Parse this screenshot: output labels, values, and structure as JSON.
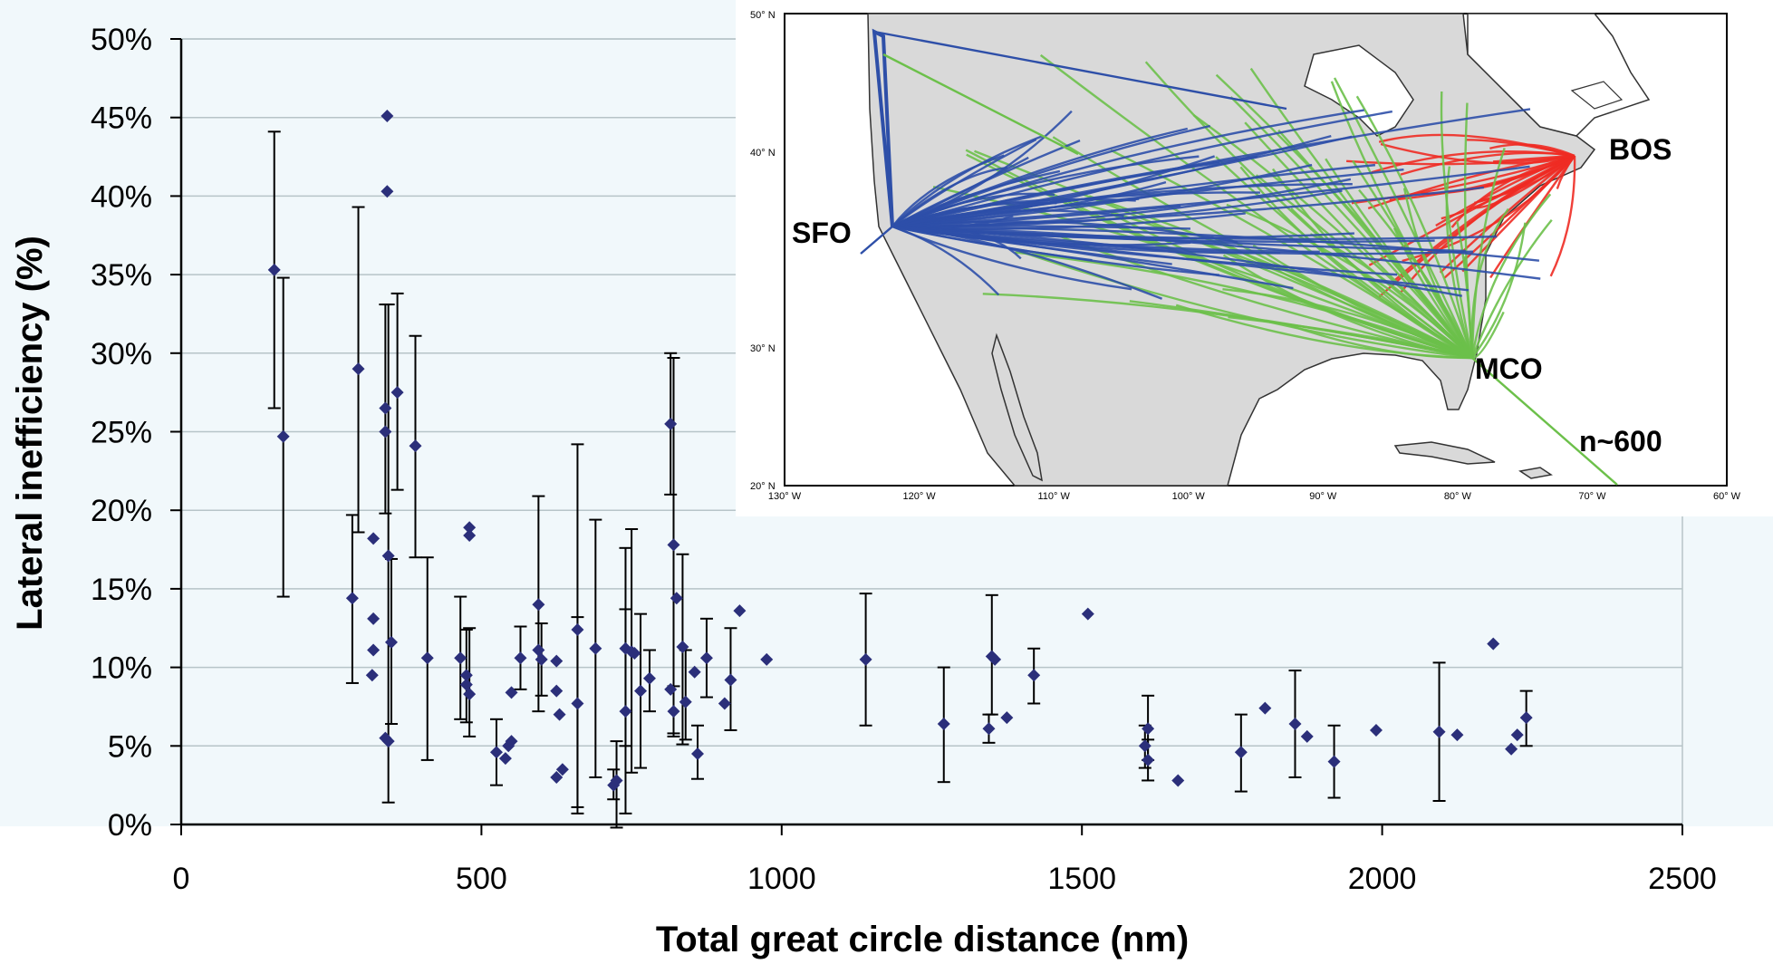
{
  "chart_data": {
    "type": "scatter",
    "xlabel": "Total great circle distance (nm)",
    "ylabel": "Lateral inefficiency (%)",
    "xlim": [
      0,
      2500
    ],
    "ylim": [
      0,
      50
    ],
    "x_ticks": [
      "0",
      "500",
      "1000",
      "1500",
      "2000",
      "2500"
    ],
    "y_ticks": [
      "0%",
      "5%",
      "10%",
      "15%",
      "20%",
      "25%",
      "30%",
      "35%",
      "40%",
      "45%",
      "50%"
    ],
    "grid": "horizontal",
    "marker_color": "#2b2f7a",
    "points": [
      {
        "x": 155,
        "y": 35.3,
        "lo": 26.5,
        "hi": 44.1
      },
      {
        "x": 170,
        "y": 24.7,
        "lo": 14.5,
        "hi": 34.8
      },
      {
        "x": 285,
        "y": 14.4,
        "lo": 9.0,
        "hi": 19.7
      },
      {
        "x": 295,
        "y": 29.0,
        "lo": 18.6,
        "hi": 39.3
      },
      {
        "x": 320,
        "y": 18.2
      },
      {
        "x": 320,
        "y": 13.1
      },
      {
        "x": 320,
        "y": 11.1
      },
      {
        "x": 318,
        "y": 9.5
      },
      {
        "x": 343,
        "y": 45.1
      },
      {
        "x": 343,
        "y": 40.3
      },
      {
        "x": 340,
        "y": 26.5,
        "lo": 19.8,
        "hi": 33.1
      },
      {
        "x": 340,
        "y": 25.0
      },
      {
        "x": 345,
        "y": 17.1,
        "lo": 1.4,
        "hi": 33.1
      },
      {
        "x": 345,
        "y": 5.3
      },
      {
        "x": 340,
        "y": 5.5
      },
      {
        "x": 350,
        "y": 11.6,
        "lo": 6.4,
        "hi": 16.9
      },
      {
        "x": 360,
        "y": 27.5,
        "lo": 21.3,
        "hi": 33.8
      },
      {
        "x": 390,
        "y": 24.1,
        "lo": 17.0,
        "hi": 31.1
      },
      {
        "x": 410,
        "y": 10.6,
        "lo": 4.1,
        "hi": 17.0
      },
      {
        "x": 465,
        "y": 10.6,
        "lo": 6.7,
        "hi": 14.5
      },
      {
        "x": 480,
        "y": 18.9
      },
      {
        "x": 480,
        "y": 18.4
      },
      {
        "x": 475,
        "y": 9.5,
        "lo": 6.5,
        "hi": 12.4
      },
      {
        "x": 475,
        "y": 8.9
      },
      {
        "x": 480,
        "y": 8.3,
        "lo": 5.6,
        "hi": 12.5
      },
      {
        "x": 525,
        "y": 4.6,
        "lo": 2.5,
        "hi": 6.7
      },
      {
        "x": 540,
        "y": 4.2
      },
      {
        "x": 545,
        "y": 5.0
      },
      {
        "x": 550,
        "y": 5.3
      },
      {
        "x": 550,
        "y": 8.4
      },
      {
        "x": 565,
        "y": 10.6,
        "lo": 8.6,
        "hi": 12.6
      },
      {
        "x": 595,
        "y": 14.0,
        "lo": 7.2,
        "hi": 20.9
      },
      {
        "x": 595,
        "y": 11.1
      },
      {
        "x": 600,
        "y": 10.5,
        "lo": 8.2,
        "hi": 12.8
      },
      {
        "x": 625,
        "y": 10.4
      },
      {
        "x": 625,
        "y": 8.5
      },
      {
        "x": 630,
        "y": 7.0
      },
      {
        "x": 625,
        "y": 3.0
      },
      {
        "x": 635,
        "y": 3.5
      },
      {
        "x": 660,
        "y": 12.4,
        "lo": 0.7,
        "hi": 24.2
      },
      {
        "x": 660,
        "y": 7.7,
        "lo": 1.1,
        "hi": 13.2
      },
      {
        "x": 690,
        "y": 11.2,
        "lo": 3.0,
        "hi": 19.4
      },
      {
        "x": 720,
        "y": 2.5,
        "lo": 1.6,
        "hi": 3.5
      },
      {
        "x": 725,
        "y": 2.8,
        "lo": -0.2,
        "hi": 5.3
      },
      {
        "x": 740,
        "y": 11.2,
        "lo": 5.0,
        "hi": 17.6
      },
      {
        "x": 740,
        "y": 7.2,
        "lo": 0.7,
        "hi": 13.7
      },
      {
        "x": 750,
        "y": 11.0,
        "lo": 3.3,
        "hi": 18.8
      },
      {
        "x": 755,
        "y": 10.9
      },
      {
        "x": 765,
        "y": 8.5,
        "lo": 3.6,
        "hi": 13.4
      },
      {
        "x": 780,
        "y": 9.3,
        "lo": 7.2,
        "hi": 11.1
      },
      {
        "x": 815,
        "y": 25.5,
        "lo": 21.0,
        "hi": 30.0
      },
      {
        "x": 820,
        "y": 17.8,
        "lo": 5.8,
        "hi": 29.7
      },
      {
        "x": 825,
        "y": 14.4
      },
      {
        "x": 815,
        "y": 8.6
      },
      {
        "x": 820,
        "y": 7.2,
        "lo": 5.6,
        "hi": 8.8
      },
      {
        "x": 835,
        "y": 11.3,
        "lo": 5.1,
        "hi": 17.2
      },
      {
        "x": 840,
        "y": 7.8,
        "lo": 5.4,
        "hi": 11.1
      },
      {
        "x": 855,
        "y": 9.7
      },
      {
        "x": 860,
        "y": 4.5,
        "lo": 2.9,
        "hi": 6.3
      },
      {
        "x": 875,
        "y": 10.6,
        "lo": 8.1,
        "hi": 13.1
      },
      {
        "x": 905,
        "y": 7.7
      },
      {
        "x": 915,
        "y": 9.2,
        "lo": 6.0,
        "hi": 12.5
      },
      {
        "x": 930,
        "y": 13.6
      },
      {
        "x": 975,
        "y": 10.5
      },
      {
        "x": 1140,
        "y": 10.5,
        "lo": 6.3,
        "hi": 14.7
      },
      {
        "x": 1270,
        "y": 6.4,
        "lo": 2.7,
        "hi": 10.0
      },
      {
        "x": 1345,
        "y": 6.1,
        "lo": 5.2,
        "hi": 7.0
      },
      {
        "x": 1350,
        "y": 10.7,
        "lo": 7.0,
        "hi": 14.6
      },
      {
        "x": 1355,
        "y": 10.5
      },
      {
        "x": 1375,
        "y": 6.8
      },
      {
        "x": 1420,
        "y": 9.5,
        "lo": 7.7,
        "hi": 11.2
      },
      {
        "x": 1510,
        "y": 13.4
      },
      {
        "x": 1605,
        "y": 5.0,
        "lo": 3.6,
        "hi": 6.3
      },
      {
        "x": 1610,
        "y": 6.1,
        "lo": 4.1,
        "hi": 8.2
      },
      {
        "x": 1610,
        "y": 4.1,
        "lo": 2.8,
        "hi": 5.4
      },
      {
        "x": 1660,
        "y": 2.8
      },
      {
        "x": 1765,
        "y": 4.6,
        "lo": 2.1,
        "hi": 7.0
      },
      {
        "x": 1805,
        "y": 7.4
      },
      {
        "x": 1855,
        "y": 6.4,
        "lo": 3.0,
        "hi": 9.8
      },
      {
        "x": 1875,
        "y": 5.6
      },
      {
        "x": 1920,
        "y": 4.0,
        "lo": 1.7,
        "hi": 6.3
      },
      {
        "x": 1990,
        "y": 6.0
      },
      {
        "x": 2095,
        "y": 5.9,
        "lo": 1.5,
        "hi": 10.3
      },
      {
        "x": 2125,
        "y": 5.7
      },
      {
        "x": 2185,
        "y": 11.5
      },
      {
        "x": 2215,
        "y": 4.8
      },
      {
        "x": 2225,
        "y": 5.7
      },
      {
        "x": 2240,
        "y": 6.8,
        "lo": 5.0,
        "hi": 8.5
      }
    ]
  },
  "inset_map": {
    "labels": {
      "sfo": "SFO",
      "bos": "BOS",
      "mco": "MCO",
      "count": "n~600"
    },
    "lat_ticks": [
      "50° N",
      "40° N",
      "30° N",
      "20° N"
    ],
    "lon_ticks": [
      "130° W",
      "120° W",
      "110° W",
      "100° W",
      "90° W",
      "80° W",
      "70° W",
      "60° W"
    ],
    "route_colors": {
      "sfo": "#2e4fa8",
      "bos": "#ee2b24",
      "mco": "#6cc04a"
    }
  }
}
